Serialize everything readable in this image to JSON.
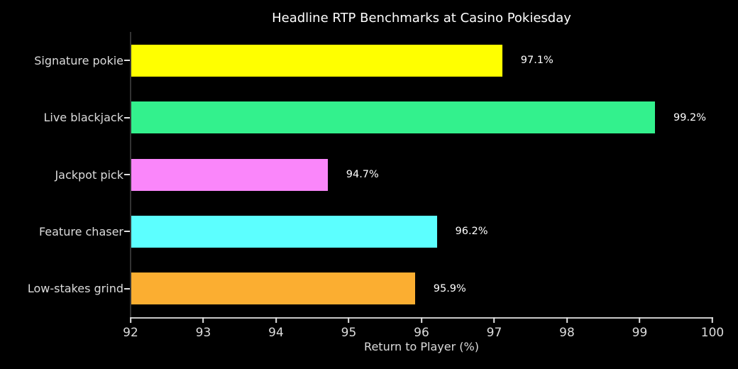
{
  "chart_data": {
    "type": "bar",
    "orientation": "horizontal",
    "title": "Headline RTP Benchmarks at Casino Pokiesday",
    "xlabel": "Return to Player (%)",
    "ylabel": "",
    "categories": [
      "Signature pokie",
      "Live blackjack",
      "Jackpot pick",
      "Feature chaser",
      "Low-stakes grind"
    ],
    "values": [
      97.1,
      99.2,
      94.7,
      96.2,
      95.9
    ],
    "value_labels": [
      "97.1%",
      "99.2%",
      "94.7%",
      "96.2%",
      "95.9%"
    ],
    "bar_colors": [
      "#ffff00",
      "#33f18d",
      "#fa86fa",
      "#5cffff",
      "#fbae31"
    ],
    "xlim": [
      92,
      100
    ],
    "xticks": [
      "92",
      "93",
      "94",
      "95",
      "96",
      "97",
      "98",
      "99",
      "100"
    ],
    "grid": false,
    "legend_position": "none",
    "background_color": "#000000",
    "axis_text_color": "#dcdcdc",
    "title_color": "#ffffff",
    "value_label_color": "#ffffff"
  }
}
